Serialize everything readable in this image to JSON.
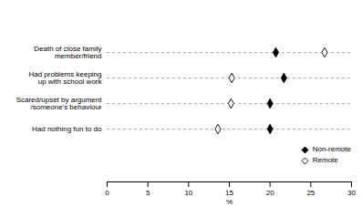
{
  "chart_data": {
    "type": "dot",
    "orientation": "horizontal",
    "x_label": "%",
    "categories": [
      "Death of close family\nmember/friend",
      "Had problems keeping\nup with school work",
      "Scared/upset by argument\n/someone's behaviour",
      "Had nothing fun to do"
    ],
    "series": [
      {
        "name": "Non-remote",
        "color": "#000000",
        "marker": "diamond",
        "values": [
          20.7,
          21.7,
          20.0,
          20.0
        ]
      },
      {
        "name": "Remote",
        "color": "#000000",
        "marker": "open-diamond",
        "values": [
          26.7,
          15.3,
          15.2,
          13.6
        ]
      }
    ],
    "xlim": [
      0,
      30
    ],
    "xticks": [
      0,
      5,
      10,
      15,
      20,
      25,
      30
    ],
    "legend": "bottom-right",
    "line_style": "dashed",
    "grid": false
  }
}
